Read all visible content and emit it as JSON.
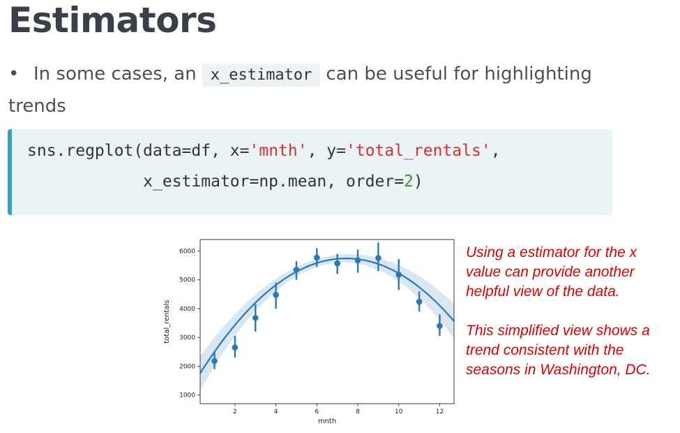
{
  "title": "Estimators",
  "bullet": {
    "text_before": "In some cases, an",
    "code": "x_estimator",
    "text_after": "can be useful for highlighting trends"
  },
  "code": {
    "line1_a": "sns.regplot(data=df, x=",
    "line1_s1": "'mnth'",
    "line1_b": ", y=",
    "line1_s2": "'total_rentals'",
    "line1_c": ",",
    "line2_a": "            x_estimator=np.mean, order=",
    "line2_n": "2",
    "line2_c": ")"
  },
  "note": {
    "p1": "Using a estimator for the x value can provide another helpful view of the data.",
    "p2": "This simplified view shows a trend consistent with the seasons in Washington, DC."
  },
  "colors": {
    "series": "#2a78b5",
    "note": "#e00000",
    "code_border": "#2fa4c7"
  },
  "chart_data": {
    "type": "scatter",
    "xlabel": "mnth",
    "ylabel": "total_rentals",
    "xlim": [
      0.3,
      12.7
    ],
    "ylim": [
      700,
      6400
    ],
    "xticks": [
      2,
      4,
      6,
      8,
      10,
      12
    ],
    "yticks": [
      1000,
      2000,
      3000,
      4000,
      5000,
      6000
    ],
    "points": [
      {
        "x": 1,
        "y": 2180,
        "lo": 1900,
        "hi": 2500
      },
      {
        "x": 2,
        "y": 2650,
        "lo": 2300,
        "hi": 3050
      },
      {
        "x": 3,
        "y": 3680,
        "lo": 3200,
        "hi": 4150
      },
      {
        "x": 4,
        "y": 4480,
        "lo": 4000,
        "hi": 4900
      },
      {
        "x": 5,
        "y": 5350,
        "lo": 5000,
        "hi": 5650
      },
      {
        "x": 6,
        "y": 5770,
        "lo": 5450,
        "hi": 6100
      },
      {
        "x": 7,
        "y": 5570,
        "lo": 5200,
        "hi": 5900
      },
      {
        "x": 8,
        "y": 5680,
        "lo": 5250,
        "hi": 6050
      },
      {
        "x": 9,
        "y": 5760,
        "lo": 5300,
        "hi": 6300
      },
      {
        "x": 10,
        "y": 5180,
        "lo": 4650,
        "hi": 5720
      },
      {
        "x": 11,
        "y": 4240,
        "lo": 3900,
        "hi": 4600
      },
      {
        "x": 12,
        "y": 3400,
        "lo": 3050,
        "hi": 3800
      }
    ],
    "fit": {
      "order": 2,
      "coefficients": [
        -78.47,
        1166.0,
        1414
      ]
    }
  }
}
